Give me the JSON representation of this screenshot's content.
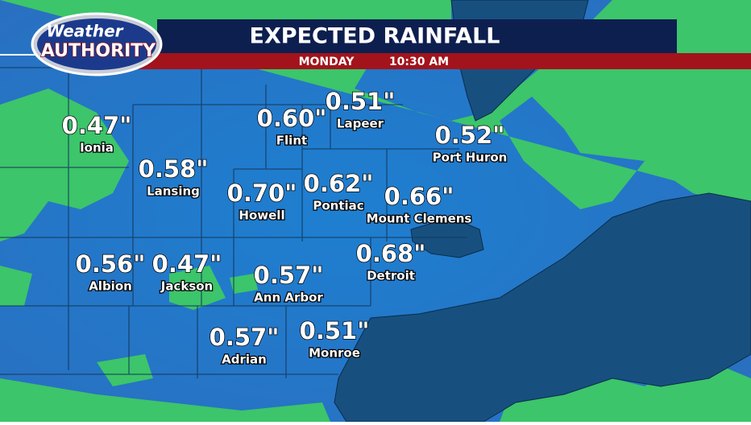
{
  "header": {
    "logo_top": "Weather",
    "logo_bottom": "AUTHORITY",
    "title": "EXPECTED RAINFALL",
    "day": "MONDAY",
    "time": "10:30 AM"
  },
  "locations": [
    {
      "name": "Ionia",
      "amount": "0.47\""
    },
    {
      "name": "Lansing",
      "amount": "0.58\""
    },
    {
      "name": "Flint",
      "amount": "0.60\""
    },
    {
      "name": "Lapeer",
      "amount": "0.51\""
    },
    {
      "name": "Port Huron",
      "amount": "0.52\""
    },
    {
      "name": "Howell",
      "amount": "0.70\""
    },
    {
      "name": "Pontiac",
      "amount": "0.62\""
    },
    {
      "name": "Mount Clemens",
      "amount": "0.66\""
    },
    {
      "name": "Albion",
      "amount": "0.56\""
    },
    {
      "name": "Jackson",
      "amount": "0.47\""
    },
    {
      "name": "Ann Arbor",
      "amount": "0.57\""
    },
    {
      "name": "Detroit",
      "amount": "0.68\""
    },
    {
      "name": "Adrian",
      "amount": "0.57\""
    },
    {
      "name": "Monroe",
      "amount": "0.51\""
    }
  ]
}
